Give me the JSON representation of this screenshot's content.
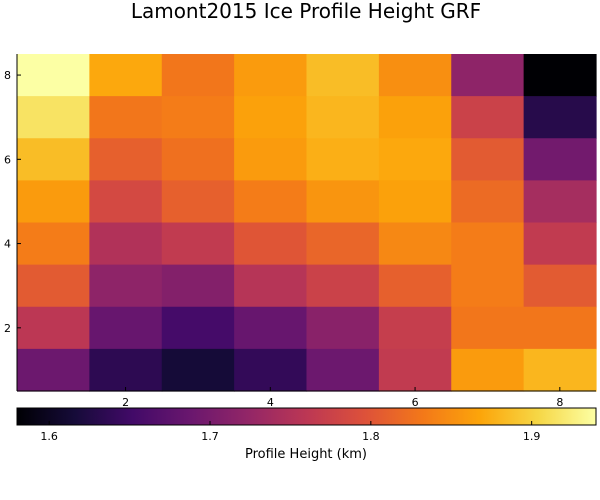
{
  "chart_data": {
    "type": "heatmap",
    "title": "Lamont2015 Ice Profile Height GRF",
    "xlabel": "",
    "ylabel": "",
    "colorbar_label": "Profile Height (km)",
    "colormap": "inferno",
    "xlim": [
      0.5,
      8.5
    ],
    "ylim": [
      0.5,
      8.5
    ],
    "x_ticks": [
      "2",
      "4",
      "6",
      "8"
    ],
    "y_ticks": [
      "2",
      "4",
      "6",
      "8"
    ],
    "clim": [
      1.58,
      1.94
    ],
    "colorbar_ticks": [
      "1.6",
      "1.7",
      "1.8",
      "1.9"
    ],
    "grid": false,
    "rows_top_to_bottom": [
      [
        1.94,
        1.87,
        1.83,
        1.86,
        1.885,
        1.85,
        1.72,
        1.58
      ],
      [
        1.915,
        1.83,
        1.835,
        1.865,
        1.88,
        1.865,
        1.775,
        1.63
      ],
      [
        1.885,
        1.81,
        1.825,
        1.86,
        1.875,
        1.87,
        1.805,
        1.695
      ],
      [
        1.86,
        1.785,
        1.81,
        1.835,
        1.855,
        1.865,
        1.82,
        1.74
      ],
      [
        1.835,
        1.75,
        1.765,
        1.8,
        1.815,
        1.845,
        1.835,
        1.765
      ],
      [
        1.805,
        1.72,
        1.71,
        1.755,
        1.775,
        1.81,
        1.835,
        1.805
      ],
      [
        1.76,
        1.685,
        1.655,
        1.685,
        1.715,
        1.77,
        1.83,
        1.83
      ],
      [
        1.69,
        1.635,
        1.615,
        1.64,
        1.69,
        1.765,
        1.86,
        1.88
      ]
    ]
  }
}
